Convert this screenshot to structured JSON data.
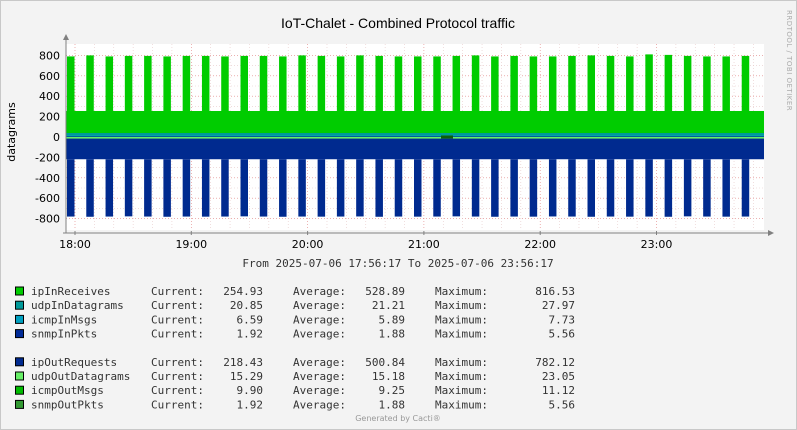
{
  "chart_data": {
    "type": "bar",
    "title": "IoT-Chalet - Combined Protocol traffic",
    "ylabel": "datagrams",
    "watermark": "RRDTOOL / TOBI OETIKER",
    "ylim": [
      -900,
      900
    ],
    "yticks": [
      800,
      600,
      400,
      200,
      0,
      -200,
      -400,
      -600,
      -800
    ],
    "ytick_labels": [
      "800",
      "600",
      "400",
      "200",
      "0",
      "-200",
      "-400",
      "-600",
      "-800"
    ],
    "xlim": [
      "2025-07-06 17:56:17",
      "2025-07-06 23:56:17"
    ],
    "xticks": [
      "18:00",
      "19:00",
      "20:00",
      "21:00",
      "22:00",
      "23:00"
    ],
    "x_range_text": "From 2025-07-06 17:56:17 To 2025-07-06 23:56:17",
    "footer": "Generated by Cacti®",
    "grid": true,
    "colors": {
      "ipInReceives": "#00cc00",
      "udpInDatagrams": "#009999",
      "icmpInMsgs": "#00a0c0",
      "snmpInPkts": "#002a97",
      "ipOutRequests": "#002a8f",
      "udpOutDatagrams": "#66ee66",
      "icmpOutMsgs": "#00bb00",
      "snmpOutPkts": "#339933"
    },
    "burst_peaks_in": [
      790,
      800,
      790,
      795,
      795,
      790,
      795,
      795,
      790,
      795,
      795,
      790,
      800,
      795,
      790,
      800,
      795,
      790,
      790,
      790,
      795,
      800,
      790,
      795,
      790,
      790,
      795,
      800,
      795,
      790,
      810,
      805,
      795,
      790,
      790,
      795
    ],
    "burst_peaks_out": [
      -780,
      -782,
      -780,
      -778,
      -780,
      -782,
      -780,
      -781,
      -780,
      -778,
      -780,
      -782,
      -780,
      -781,
      -780,
      -779,
      -782,
      -780,
      -781,
      -780,
      -778,
      -780,
      -782,
      -780,
      -781,
      -779,
      -780,
      -782,
      -780,
      -781,
      -780,
      -782,
      -778,
      -780,
      -781,
      -780
    ],
    "baseline_in": 255,
    "baseline_out": -218,
    "legend": [
      {
        "name": "ipInReceives",
        "current": "254.93",
        "average": "528.89",
        "maximum": "816.53"
      },
      {
        "name": "udpInDatagrams",
        "current": "20.85",
        "average": "21.21",
        "maximum": "27.97"
      },
      {
        "name": "icmpInMsgs",
        "current": "6.59",
        "average": "5.89",
        "maximum": "7.73"
      },
      {
        "name": "snmpInPkts",
        "current": "1.92",
        "average": "1.88",
        "maximum": "5.56"
      },
      {
        "name": "ipOutRequests",
        "current": "218.43",
        "average": "500.84",
        "maximum": "782.12"
      },
      {
        "name": "udpOutDatagrams",
        "current": "15.29",
        "average": "15.18",
        "maximum": "23.05"
      },
      {
        "name": "icmpOutMsgs",
        "current": "9.90",
        "average": "9.25",
        "maximum": "11.12"
      },
      {
        "name": "snmpOutPkts",
        "current": "1.92",
        "average": "1.88",
        "maximum": "5.56"
      }
    ],
    "legend_labels": {
      "current": "Current:",
      "average": "Average:",
      "maximum": "Maximum:"
    }
  }
}
